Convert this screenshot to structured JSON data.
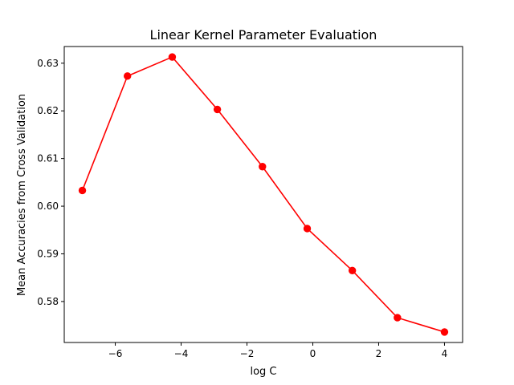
{
  "chart_data": {
    "type": "line",
    "title": "Linear Kernel Parameter Evaluation",
    "xlabel": "log C",
    "ylabel": "Mean Accuracies from Cross Validation",
    "x": [
      -7.0,
      -5.63,
      -4.27,
      -2.9,
      -1.53,
      -0.17,
      1.2,
      2.57,
      4.0
    ],
    "series": [
      {
        "values": [
          0.6033,
          0.6273,
          0.6313,
          0.6203,
          0.6083,
          0.5953,
          0.5865,
          0.5766,
          0.5736
        ],
        "color": "#ff0000",
        "marker": "circle"
      }
    ],
    "xlim": [
      -7.55,
      4.55
    ],
    "ylim": [
      0.5714,
      0.6335
    ],
    "xticks": [
      -6,
      -4,
      -2,
      0,
      2,
      4
    ],
    "xtick_labels": [
      "−6",
      "−4",
      "−2",
      "0",
      "2",
      "4"
    ],
    "yticks": [
      0.58,
      0.59,
      0.6,
      0.61,
      0.62,
      0.63
    ],
    "ytick_labels": [
      "0.58",
      "0.59",
      "0.60",
      "0.61",
      "0.62",
      "0.63"
    ],
    "grid": false,
    "legend": "none"
  }
}
